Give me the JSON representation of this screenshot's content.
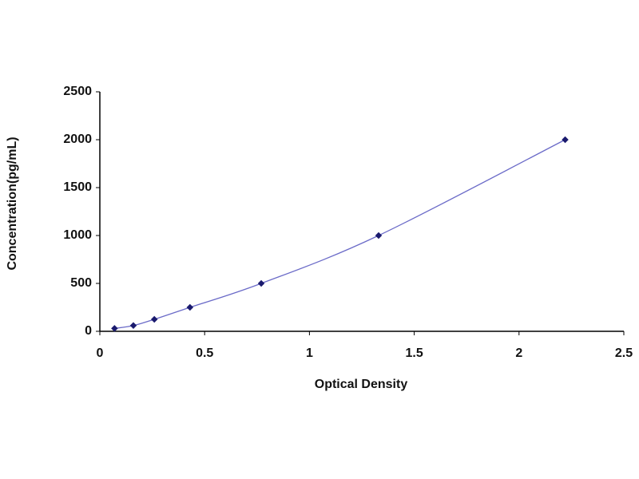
{
  "chart_data": {
    "type": "scatter",
    "x_label": "Optical Density",
    "y_label": "Concentration(pg/mL)",
    "x": [
      0.07,
      0.16,
      0.26,
      0.43,
      0.77,
      1.33,
      2.22
    ],
    "values": [
      30,
      60,
      125,
      250,
      500,
      1000,
      2000
    ],
    "color": "#1a1a6e",
    "line_color": "#6b6bc8",
    "line": true,
    "xlim": [
      0,
      2.5
    ],
    "xticks": [
      0,
      0.5,
      1,
      1.5,
      2,
      2.5
    ],
    "ylim": [
      0,
      2500
    ],
    "yticks": [
      0,
      500,
      1000,
      1500,
      2000,
      2500
    ],
    "grid": false
  }
}
